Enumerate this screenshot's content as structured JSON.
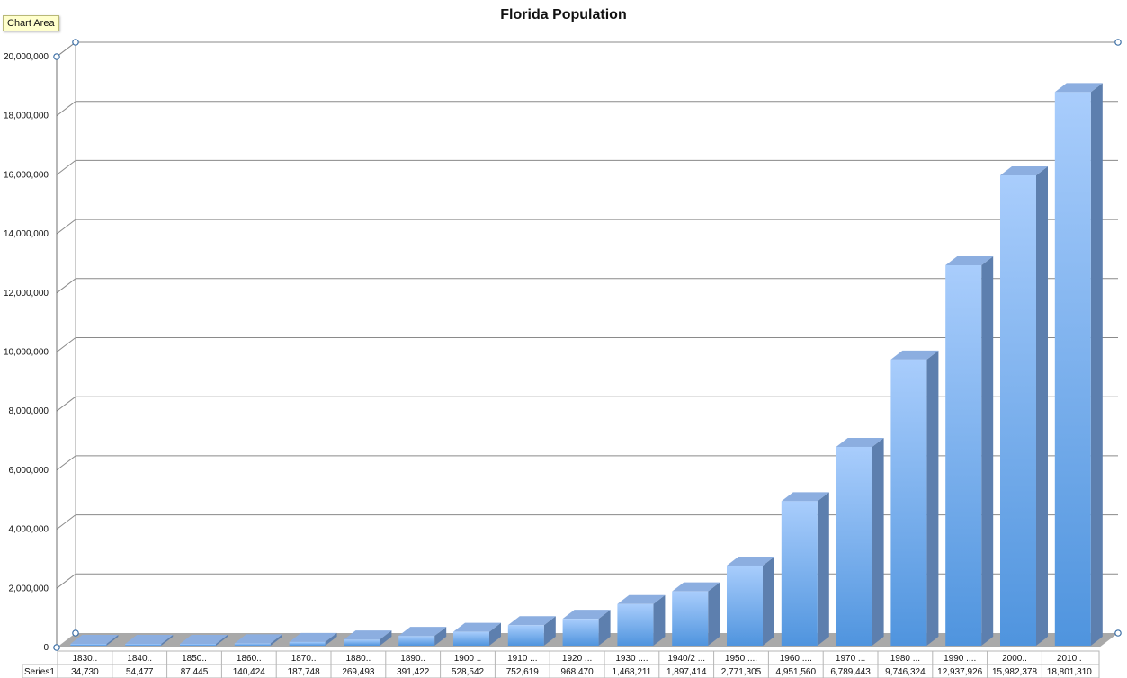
{
  "tooltip": "Chart Area",
  "chart_data": {
    "type": "bar",
    "title": "Florida Population",
    "xlabel": "",
    "ylabel": "",
    "ylim": [
      0,
      20000000
    ],
    "yticks": [
      0,
      2000000,
      4000000,
      6000000,
      8000000,
      10000000,
      12000000,
      14000000,
      16000000,
      18000000,
      20000000
    ],
    "ytick_labels": [
      "0",
      "2,000,000",
      "4,000,000",
      "6,000,000",
      "8,000,000",
      "10,000,000",
      "12,000,000",
      "14,000,000",
      "16,000,000",
      "18,000,000",
      "20,000,000"
    ],
    "grid": true,
    "style": "3d-column",
    "categories": [
      "1830..",
      "1840..",
      "1850..",
      "1860..",
      "1870..",
      "1880..",
      "1890..",
      "1900 ..",
      "1910 ...",
      "1920 ...",
      "1930 ....",
      "1940/2 ...",
      "1950 ....",
      "1960 ....",
      "1970 ...",
      "1980 ...",
      "1990 ....",
      "2000..",
      "2010.."
    ],
    "series": [
      {
        "name": "Series1",
        "values": [
          34730,
          54477,
          87445,
          140424,
          187748,
          269493,
          391422,
          528542,
          752619,
          968470,
          1468211,
          1897414,
          2771305,
          4951560,
          6789443,
          9746324,
          12937926,
          15982378,
          18801310
        ],
        "value_labels": [
          "34,730",
          "54,477",
          "87,445",
          "140,424",
          "187,748",
          "269,493",
          "391,422",
          "528,542",
          "752,619",
          "968,470",
          "1,468,211",
          "1,897,414",
          "2,771,305",
          "4,951,560",
          "6,789,443",
          "9,746,324",
          "12,937,926",
          "15,982,378",
          "18,801,310"
        ]
      }
    ],
    "data_table": true,
    "colors": {
      "bar_front_top": "#a9cdfc",
      "bar_front_bottom": "#4f94de",
      "bar_side": "#5d7fae",
      "bar_top": "#8caee0",
      "floor": "#a9a9a9",
      "gridline": "#8a8a8a"
    }
  }
}
